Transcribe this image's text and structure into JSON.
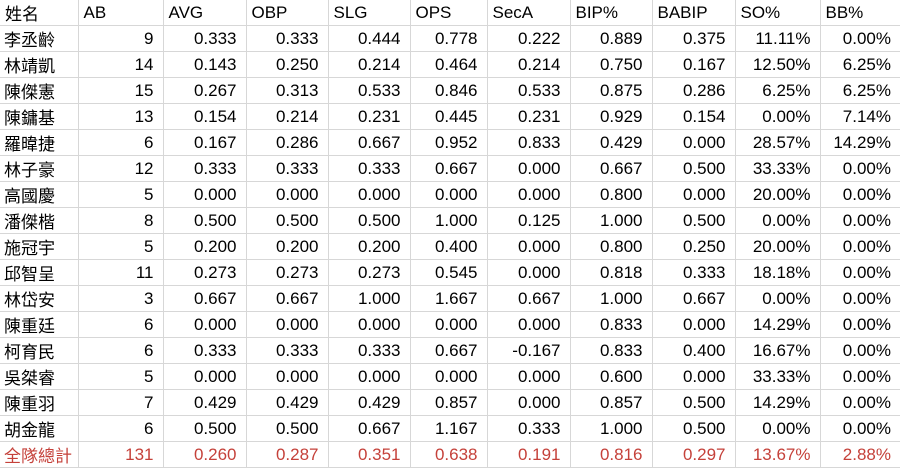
{
  "colors": {
    "text": "#000000",
    "total_text": "#c5413a",
    "gridline": "#d7d7d7",
    "background": "#ffffff"
  },
  "table": {
    "columns": [
      "姓名",
      "AB",
      "AVG",
      "OBP",
      "SLG",
      "OPS",
      "SecA",
      "BIP%",
      "BABIP",
      "SO%",
      "BB%"
    ],
    "rows": [
      [
        "李丞齡",
        "9",
        "0.333",
        "0.333",
        "0.444",
        "0.778",
        "0.222",
        "0.889",
        "0.375",
        "11.11%",
        "0.00%"
      ],
      [
        "林靖凱",
        "14",
        "0.143",
        "0.250",
        "0.214",
        "0.464",
        "0.214",
        "0.750",
        "0.167",
        "12.50%",
        "6.25%"
      ],
      [
        "陳傑憲",
        "15",
        "0.267",
        "0.313",
        "0.533",
        "0.846",
        "0.533",
        "0.875",
        "0.286",
        "6.25%",
        "6.25%"
      ],
      [
        "陳鏞基",
        "13",
        "0.154",
        "0.214",
        "0.231",
        "0.445",
        "0.231",
        "0.929",
        "0.154",
        "0.00%",
        "7.14%"
      ],
      [
        "羅暐捷",
        "6",
        "0.167",
        "0.286",
        "0.667",
        "0.952",
        "0.833",
        "0.429",
        "0.000",
        "28.57%",
        "14.29%"
      ],
      [
        "林子豪",
        "12",
        "0.333",
        "0.333",
        "0.333",
        "0.667",
        "0.000",
        "0.667",
        "0.500",
        "33.33%",
        "0.00%"
      ],
      [
        "高國慶",
        "5",
        "0.000",
        "0.000",
        "0.000",
        "0.000",
        "0.000",
        "0.800",
        "0.000",
        "20.00%",
        "0.00%"
      ],
      [
        "潘傑楷",
        "8",
        "0.500",
        "0.500",
        "0.500",
        "1.000",
        "0.125",
        "1.000",
        "0.500",
        "0.00%",
        "0.00%"
      ],
      [
        "施冠宇",
        "5",
        "0.200",
        "0.200",
        "0.200",
        "0.400",
        "0.000",
        "0.800",
        "0.250",
        "20.00%",
        "0.00%"
      ],
      [
        "邱智呈",
        "11",
        "0.273",
        "0.273",
        "0.273",
        "0.545",
        "0.000",
        "0.818",
        "0.333",
        "18.18%",
        "0.00%"
      ],
      [
        "林岱安",
        "3",
        "0.667",
        "0.667",
        "1.000",
        "1.667",
        "0.667",
        "1.000",
        "0.667",
        "0.00%",
        "0.00%"
      ],
      [
        "陳重廷",
        "6",
        "0.000",
        "0.000",
        "0.000",
        "0.000",
        "0.000",
        "0.833",
        "0.000",
        "14.29%",
        "0.00%"
      ],
      [
        "柯育民",
        "6",
        "0.333",
        "0.333",
        "0.333",
        "0.667",
        "-0.167",
        "0.833",
        "0.400",
        "16.67%",
        "0.00%"
      ],
      [
        "吳桀睿",
        "5",
        "0.000",
        "0.000",
        "0.000",
        "0.000",
        "0.000",
        "0.600",
        "0.000",
        "33.33%",
        "0.00%"
      ],
      [
        "陳重羽",
        "7",
        "0.429",
        "0.429",
        "0.429",
        "0.857",
        "0.000",
        "0.857",
        "0.500",
        "14.29%",
        "0.00%"
      ],
      [
        "胡金龍",
        "6",
        "0.500",
        "0.500",
        "0.667",
        "1.167",
        "0.333",
        "1.000",
        "0.500",
        "0.00%",
        "0.00%"
      ]
    ],
    "total_row": [
      "全隊總計",
      "131",
      "0.260",
      "0.287",
      "0.351",
      "0.638",
      "0.191",
      "0.816",
      "0.297",
      "13.67%",
      "2.88%"
    ]
  }
}
